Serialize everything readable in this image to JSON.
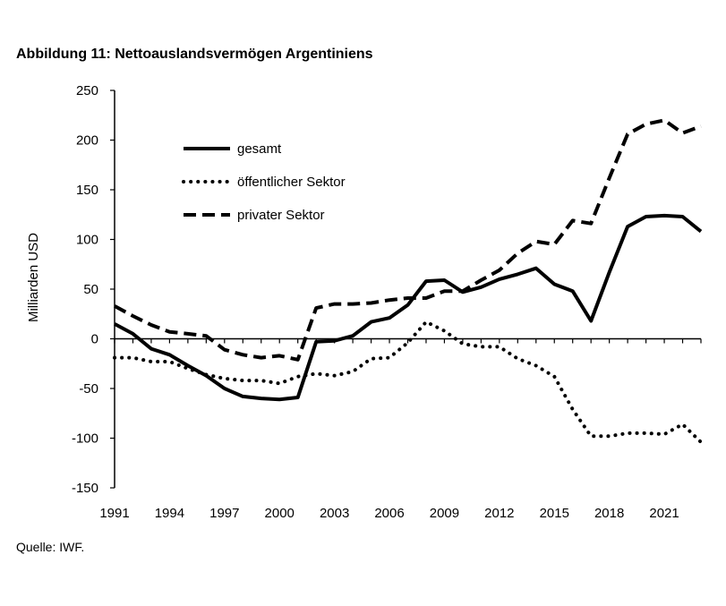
{
  "figure": {
    "title": "Abbildung 11: Nettoauslandsvermögen Argentiniens",
    "source": "Quelle: IWF."
  },
  "chart_data": {
    "type": "line",
    "title": "Abbildung 11: Nettoauslandsvermögen Argentiniens",
    "xlabel": "",
    "ylabel": "Milliarden USD",
    "ylim": [
      -150,
      250
    ],
    "xlim": [
      1991,
      2023
    ],
    "yticks": [
      250,
      200,
      150,
      100,
      50,
      0,
      -50,
      -100,
      -150
    ],
    "yticklabels": [
      "250",
      "200",
      "150",
      "100",
      "50",
      "0",
      "-50",
      "-100",
      "-150"
    ],
    "xticks": [
      1991,
      1994,
      1997,
      2000,
      2003,
      2006,
      2009,
      2012,
      2015,
      2018,
      2021
    ],
    "xticklabels": [
      "1991",
      "1994",
      "1997",
      "2000",
      "2003",
      "2006",
      "2009",
      "2012",
      "2015",
      "2018",
      "2021"
    ],
    "grid": false,
    "legend_position": "upper-left",
    "x": [
      1991,
      1992,
      1993,
      1994,
      1995,
      1996,
      1997,
      1998,
      1999,
      2000,
      2001,
      2002,
      2003,
      2004,
      2005,
      2006,
      2007,
      2008,
      2009,
      2010,
      2011,
      2012,
      2013,
      2014,
      2015,
      2016,
      2017,
      2018,
      2019,
      2020,
      2021,
      2022,
      2023
    ],
    "series": [
      {
        "name": "gesamt",
        "style": "solid",
        "values": [
          15,
          5,
          -10,
          -16,
          -27,
          -37,
          -50,
          -58,
          -60,
          -61,
          -59,
          -3,
          -2,
          3,
          17,
          21,
          34,
          58,
          59,
          47,
          52,
          60,
          65,
          71,
          55,
          48,
          18,
          67,
          113,
          123,
          124,
          123,
          108
        ]
      },
      {
        "name": "öffentlicher Sektor",
        "style": "dotted",
        "values": [
          -19,
          -19,
          -23,
          -23,
          -30,
          -36,
          -40,
          -42,
          -42,
          -45,
          -38,
          -35,
          -37,
          -33,
          -20,
          -19,
          -4,
          17,
          8,
          -5,
          -8,
          -8,
          -20,
          -27,
          -38,
          -71,
          -98,
          -98,
          -95,
          -95,
          -96,
          -86,
          -104
        ]
      },
      {
        "name": "privater Sektor",
        "style": "dashed",
        "values": [
          33,
          23,
          14,
          7,
          5,
          3,
          -11,
          -16,
          -19,
          -17,
          -21,
          31,
          35,
          35,
          36,
          39,
          41,
          41,
          48,
          48,
          59,
          69,
          86,
          98,
          95,
          119,
          116,
          162,
          206,
          216,
          220,
          207,
          214
        ]
      }
    ]
  }
}
